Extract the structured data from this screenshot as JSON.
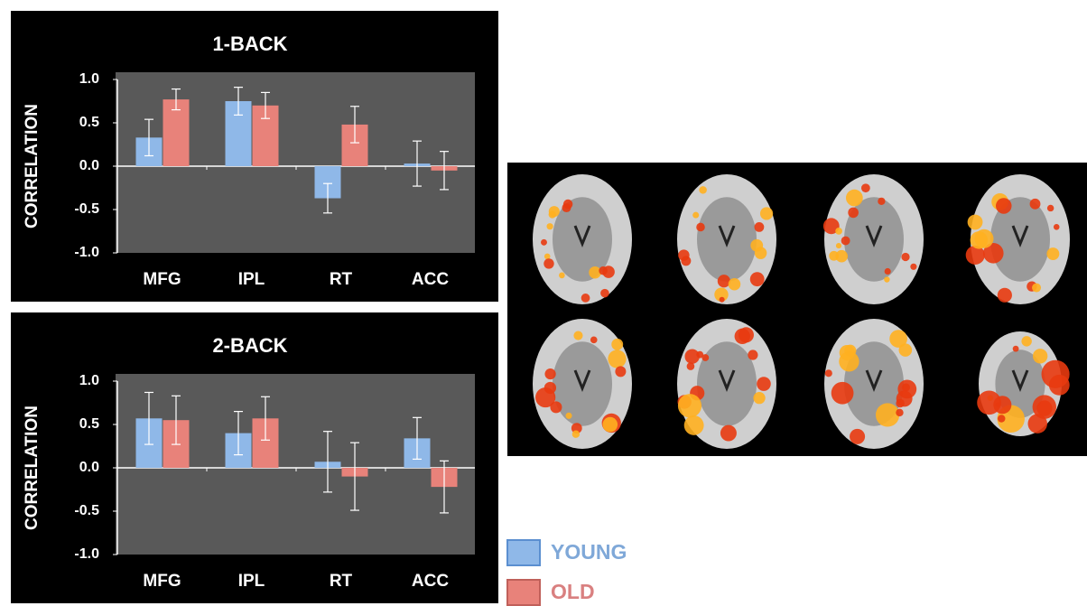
{
  "chart_data": [
    {
      "type": "bar",
      "title": "1-BACK",
      "y_label": "CORRELATION",
      "categories": [
        "MFG",
        "IPL",
        "RT",
        "ACC"
      ],
      "series": [
        {
          "name": "YOUNG",
          "color": "#8fb8e8",
          "values": [
            0.33,
            0.75,
            -0.37,
            0.03
          ],
          "errors": [
            0.21,
            0.16,
            0.17,
            0.26
          ]
        },
        {
          "name": "OLD",
          "color": "#e8827a",
          "values": [
            0.77,
            0.7,
            0.48,
            -0.05
          ],
          "errors": [
            0.12,
            0.15,
            0.21,
            0.22
          ]
        }
      ],
      "ylim": [
        -1,
        1
      ],
      "yticks": [
        {
          "value": -1,
          "label": "-1.0"
        },
        -0.5,
        {
          "value": 0,
          "label": "0.0"
        },
        0.5,
        {
          "value": 1,
          "label": "1.0"
        }
      ]
    },
    {
      "type": "bar",
      "title": "2-BACK",
      "y_label": "CORRELATION",
      "categories": [
        "MFG",
        "IPL",
        "RT",
        "ACC"
      ],
      "series": [
        {
          "name": "YOUNG",
          "color": "#8fb8e8",
          "values": [
            0.57,
            0.4,
            0.07,
            0.34
          ],
          "errors": [
            0.3,
            0.25,
            0.35,
            0.24
          ]
        },
        {
          "name": "OLD",
          "color": "#e8827a",
          "values": [
            0.55,
            0.57,
            -0.1,
            -0.22
          ],
          "errors": [
            0.28,
            0.25,
            0.39,
            0.3
          ]
        }
      ],
      "ylim": [
        -1,
        1
      ],
      "yticks": [
        {
          "value": -1,
          "label": "-1.0"
        },
        -0.5,
        {
          "value": 0,
          "label": "0.0"
        },
        0.5,
        {
          "value": 1,
          "label": "1.0"
        }
      ]
    }
  ]
}
